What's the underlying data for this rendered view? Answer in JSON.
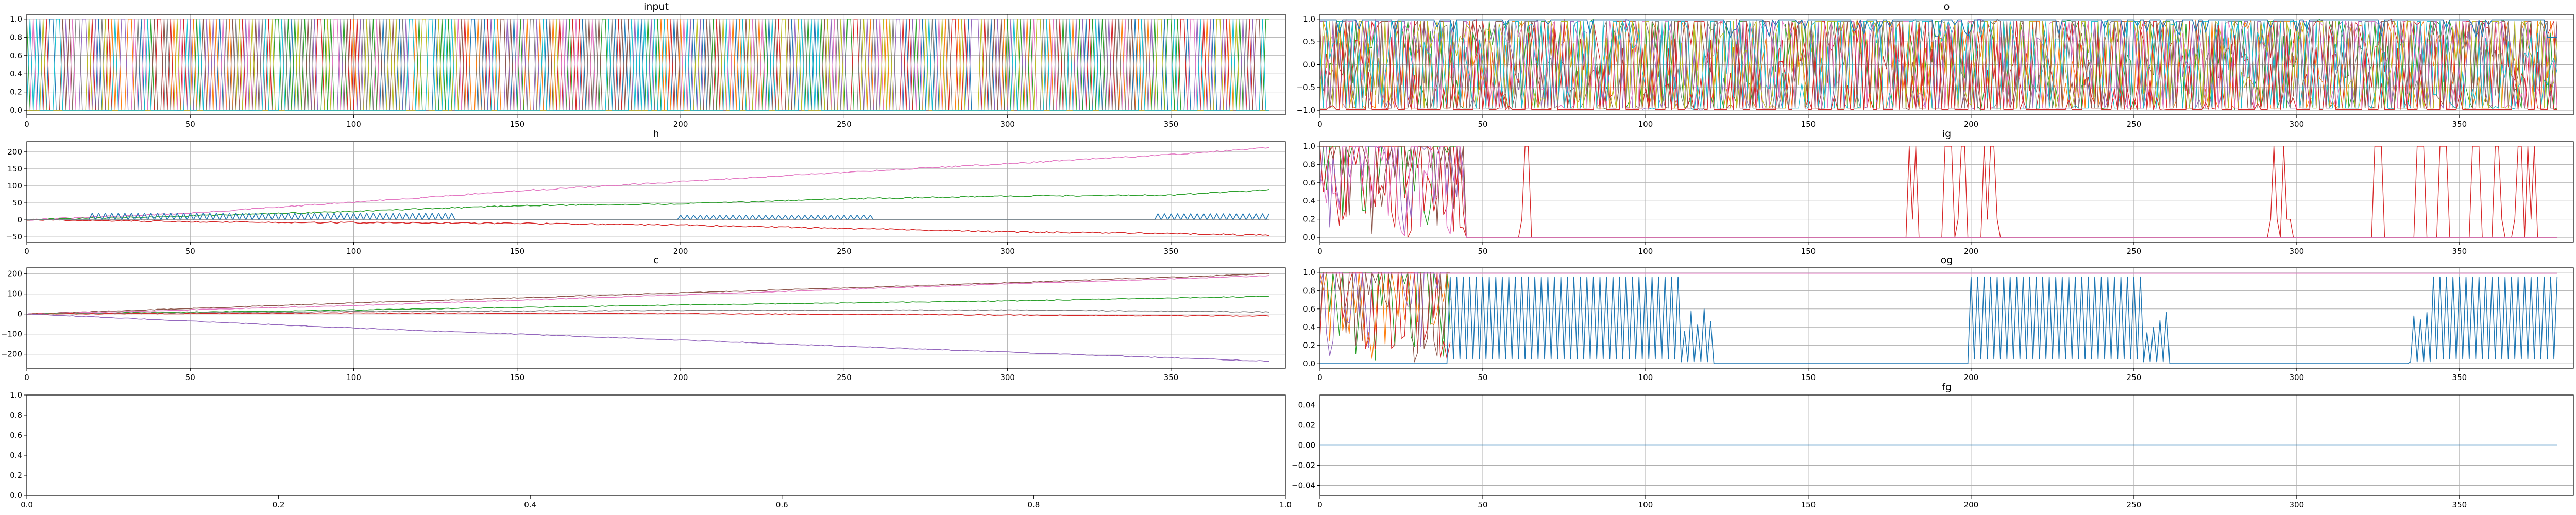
{
  "figure": {
    "palette": [
      "#1f77b4",
      "#ff7f0e",
      "#2ca02c",
      "#d62728",
      "#9467bd",
      "#8c564b",
      "#e377c2",
      "#7f7f7f",
      "#bcbd22",
      "#17becf"
    ]
  },
  "chart_data": [
    {
      "id": "input",
      "type": "line",
      "title": "input",
      "xlabel": "",
      "ylabel": "",
      "xlim": [
        0,
        385
      ],
      "ylim": [
        -0.05,
        1.05
      ],
      "xticks": [
        0,
        50,
        100,
        150,
        200,
        250,
        300,
        350
      ],
      "yticks": [
        0.0,
        0.2,
        0.4,
        0.6,
        0.8,
        1.0
      ],
      "grid": true,
      "legend": "none",
      "pattern": "dense binary one-hot switching between 0 and 1 for many series, x 0 to ~378"
    },
    {
      "id": "o",
      "type": "line",
      "title": "o",
      "xlabel": "",
      "ylabel": "",
      "xlim": [
        0,
        385
      ],
      "ylim": [
        -1.1,
        1.1
      ],
      "xticks": [
        0,
        50,
        100,
        150,
        200,
        250,
        300,
        350
      ],
      "yticks": [
        -1.0,
        -0.5,
        0.0,
        0.5,
        1.0
      ],
      "grid": true,
      "legend": "none",
      "pattern": "dense oscillation between -1 and 1 for many series; one series near 1.0 dropping to ~0.6 at the end"
    },
    {
      "id": "h",
      "type": "line",
      "title": "h",
      "xlabel": "",
      "ylabel": "",
      "xlim": [
        0,
        385
      ],
      "ylim": [
        -65,
        230
      ],
      "xticks": [
        0,
        50,
        100,
        150,
        200,
        250,
        300,
        350
      ],
      "yticks": [
        -50,
        0,
        50,
        100,
        150,
        200
      ],
      "grid": true,
      "legend": "none",
      "series": [
        {
          "color": "#e377c2",
          "x": [
            0,
            50,
            100,
            150,
            200,
            250,
            300,
            350,
            380
          ],
          "values": [
            0,
            20,
            52,
            85,
            112,
            140,
            165,
            192,
            212
          ]
        },
        {
          "color": "#2ca02c",
          "x": [
            0,
            50,
            100,
            150,
            200,
            250,
            300,
            350,
            380
          ],
          "values": [
            0,
            12,
            25,
            42,
            47,
            62,
            70,
            73,
            88
          ]
        },
        {
          "color": "#d62728",
          "x": [
            0,
            50,
            100,
            150,
            200,
            250,
            300,
            350,
            380
          ],
          "values": [
            0,
            -5,
            -8,
            -10,
            -15,
            -25,
            -35,
            -40,
            -45
          ]
        },
        {
          "color": "#1f77b4",
          "x": [
            0,
            380
          ],
          "values": [
            0,
            0
          ],
          "ripple_segments": [
            [
              20,
              130,
              20
            ],
            [
              200,
              258,
              14
            ],
            [
              345,
              380,
              18
            ]
          ]
        },
        {
          "color": "#7f7f7f",
          "x": [
            0,
            380
          ],
          "values": [
            0,
            0
          ]
        }
      ]
    },
    {
      "id": "ig",
      "type": "line",
      "title": "ig",
      "xlabel": "",
      "ylabel": "",
      "xlim": [
        0,
        385
      ],
      "ylim": [
        -0.05,
        1.05
      ],
      "xticks": [
        0,
        50,
        100,
        150,
        200,
        250,
        300,
        350
      ],
      "yticks": [
        0.0,
        0.2,
        0.4,
        0.6,
        0.8,
        1.0
      ],
      "grid": true,
      "legend": "none",
      "pattern": "dense switching early (x 0 to ~45), sparse spikes to 1.0 later, mostly at 0"
    },
    {
      "id": "c",
      "type": "line",
      "title": "c",
      "xlabel": "",
      "ylabel": "",
      "xlim": [
        0,
        385
      ],
      "ylim": [
        -270,
        230
      ],
      "xticks": [
        0,
        50,
        100,
        150,
        200,
        250,
        300,
        350
      ],
      "yticks": [
        -200,
        -100,
        0,
        100,
        200
      ],
      "grid": true,
      "legend": "none",
      "series": [
        {
          "color": "#8c564b",
          "x": [
            0,
            100,
            200,
            300,
            380
          ],
          "values": [
            0,
            55,
            105,
            155,
            200
          ]
        },
        {
          "color": "#e377c2",
          "x": [
            0,
            100,
            200,
            300,
            380
          ],
          "values": [
            0,
            42,
            95,
            150,
            190
          ]
        },
        {
          "color": "#2ca02c",
          "x": [
            0,
            100,
            200,
            300,
            380
          ],
          "values": [
            0,
            20,
            45,
            65,
            88
          ]
        },
        {
          "color": "#7f7f7f",
          "x": [
            0,
            100,
            200,
            300,
            380
          ],
          "values": [
            0,
            12,
            18,
            20,
            10
          ]
        },
        {
          "color": "#d62728",
          "x": [
            0,
            100,
            200,
            300,
            380
          ],
          "values": [
            0,
            5,
            2,
            -5,
            -10
          ]
        },
        {
          "color": "#9467bd",
          "x": [
            0,
            100,
            200,
            300,
            380
          ],
          "values": [
            0,
            -70,
            -130,
            -190,
            -235
          ]
        }
      ]
    },
    {
      "id": "og",
      "type": "line",
      "title": "og",
      "xlabel": "",
      "ylabel": "",
      "xlim": [
        0,
        385
      ],
      "ylim": [
        -0.05,
        1.05
      ],
      "xticks": [
        0,
        50,
        100,
        150,
        200,
        250,
        300,
        350
      ],
      "yticks": [
        0.0,
        0.2,
        0.4,
        0.6,
        0.8,
        1.0
      ],
      "grid": true,
      "legend": "none",
      "pattern": "flat line near 1.0 (pink); dense switching x 0 to ~40; blue oscillation bursts near x 40-120, 198-260, 340-380"
    },
    {
      "id": "empty",
      "type": "line",
      "title": "",
      "xlabel": "",
      "ylabel": "",
      "xlim": [
        0,
        1
      ],
      "ylim": [
        0,
        1
      ],
      "xticks": [
        0.0,
        0.2,
        0.4,
        0.6,
        0.8,
        1.0
      ],
      "yticks": [
        0.0,
        0.2,
        0.4,
        0.6,
        0.8,
        1.0
      ],
      "grid": false,
      "legend": "none"
    },
    {
      "id": "fg",
      "type": "line",
      "title": "fg",
      "xlabel": "",
      "ylabel": "",
      "xlim": [
        0,
        385
      ],
      "ylim": [
        -0.05,
        0.05
      ],
      "xticks": [
        0,
        50,
        100,
        150,
        200,
        250,
        300,
        350
      ],
      "yticks": [
        -0.04,
        -0.02,
        0.0,
        0.02,
        0.04
      ],
      "grid": true,
      "legend": "none",
      "series": [
        {
          "color": "#1f77b4",
          "x": [
            0,
            380
          ],
          "values": [
            0,
            0
          ]
        }
      ]
    }
  ]
}
